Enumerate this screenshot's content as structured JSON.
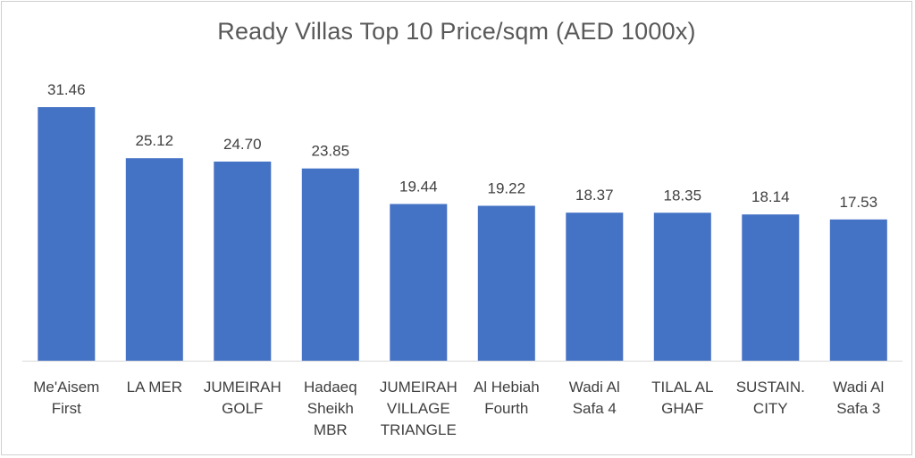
{
  "chart_data": {
    "type": "bar",
    "title": "Ready Villas Top 10 Price/sqm (AED 1000x)",
    "categories": [
      [
        "Me'Aisem",
        "First"
      ],
      [
        "LA MER"
      ],
      [
        "JUMEIRAH",
        "GOLF"
      ],
      [
        "Hadaeq",
        "Sheikh",
        "MBR"
      ],
      [
        "JUMEIRAH",
        "VILLAGE",
        "TRIANGLE"
      ],
      [
        "Al Hebiah",
        "Fourth"
      ],
      [
        "Wadi Al",
        "Safa 4"
      ],
      [
        "TILAL AL",
        "GHAF"
      ],
      [
        "SUSTAIN.",
        "CITY"
      ],
      [
        "Wadi Al",
        "Safa 3"
      ]
    ],
    "values": [
      31.46,
      25.12,
      24.7,
      23.85,
      19.44,
      19.22,
      18.37,
      18.35,
      18.14,
      17.53
    ],
    "data_labels": [
      "31.46",
      "25.12",
      "24.70",
      "23.85",
      "19.44",
      "19.22",
      "18.37",
      "18.35",
      "18.14",
      "17.53"
    ],
    "ylim": [
      0,
      31.46
    ],
    "grid": false,
    "legend": "none",
    "bar_color": "#4472C4",
    "axis_color": "#d9d9d9"
  }
}
